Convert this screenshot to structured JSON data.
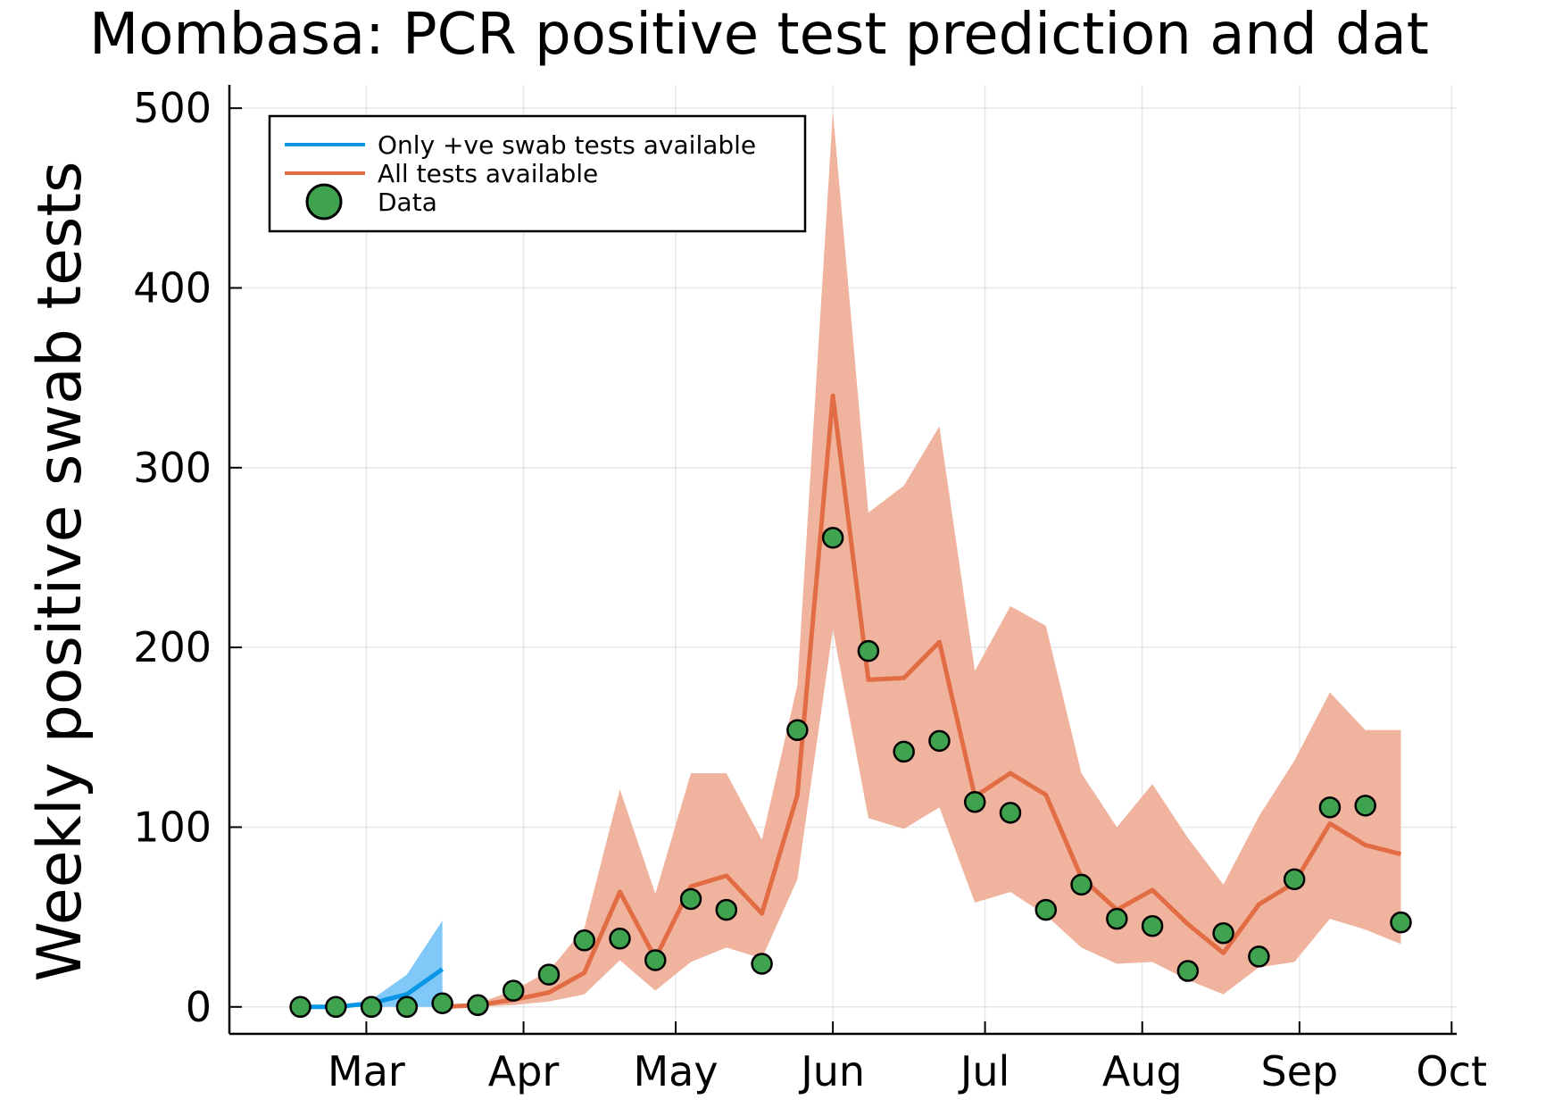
{
  "chart_data": {
    "type": "line",
    "title": "Mombasa: PCR positive test prediction and dat",
    "xlabel": "",
    "ylabel": "Weekly positive swab tests",
    "ylim": [
      -15,
      513
    ],
    "xlim_days": [
      -27,
      215
    ],
    "grid": true,
    "legend_position": "top-left",
    "x_ticks": [
      {
        "label": "Mar",
        "day": 0
      },
      {
        "label": "Apr",
        "day": 31
      },
      {
        "label": "May",
        "day": 61
      },
      {
        "label": "Jun",
        "day": 92
      },
      {
        "label": "Jul",
        "day": 122
      },
      {
        "label": "Aug",
        "day": 153
      },
      {
        "label": "Sep",
        "day": 184
      },
      {
        "label": "Oct",
        "day": 214
      }
    ],
    "y_ticks": [
      0,
      100,
      200,
      300,
      400,
      500
    ],
    "series": [
      {
        "name": "Only +ve swab tests available",
        "color": "#0a96e6",
        "band_color": "#80c8f7",
        "x": [
          -13,
          -6,
          1,
          8,
          15
        ],
        "mean": [
          0,
          0,
          2,
          7,
          21
        ],
        "lower": [
          0,
          0,
          0,
          0,
          0
        ],
        "upper": [
          0,
          0,
          4,
          18,
          48
        ]
      },
      {
        "name": "All tests available",
        "color": "#e26c44",
        "band_color": "#f0b49e",
        "x": [
          15,
          22,
          29,
          36,
          43,
          50,
          57,
          64,
          71,
          78,
          85,
          92,
          99,
          106,
          113,
          120,
          127,
          134,
          141,
          148,
          155,
          162,
          169,
          176,
          183,
          190,
          197,
          204
        ],
        "mean": [
          0,
          1,
          4,
          8,
          19,
          64,
          27,
          67,
          73,
          52,
          118,
          340,
          182,
          183,
          203,
          117,
          130,
          118,
          72,
          54,
          65,
          46,
          30,
          57,
          69,
          102,
          90,
          85
        ],
        "lower": [
          0,
          0,
          1,
          3,
          7,
          26,
          9,
          25,
          33,
          27,
          71,
          210,
          105,
          99,
          111,
          58,
          64,
          51,
          33,
          24,
          25,
          15,
          7,
          22,
          25,
          49,
          43,
          35
        ],
        "upper": [
          0,
          2,
          9,
          20,
          44,
          121,
          63,
          130,
          130,
          93,
          179,
          498,
          275,
          290,
          323,
          187,
          223,
          212,
          130,
          100,
          124,
          94,
          68,
          106,
          137,
          175,
          154,
          154
        ]
      },
      {
        "name": "Data",
        "type": "scatter",
        "color": "#3fa24e",
        "x": [
          -13,
          -6,
          1,
          8,
          15,
          22,
          29,
          36,
          43,
          50,
          57,
          64,
          71,
          78,
          85,
          92,
          99,
          106,
          113,
          120,
          127,
          134,
          141,
          148,
          155,
          162,
          169,
          176,
          183,
          190,
          197,
          204
        ],
        "values": [
          0,
          0,
          0,
          0,
          2,
          1,
          9,
          18,
          37,
          38,
          26,
          60,
          54,
          24,
          154,
          261,
          198,
          142,
          148,
          114,
          108,
          54,
          68,
          49,
          45,
          20,
          41,
          28,
          71,
          111,
          112,
          47
        ]
      }
    ]
  }
}
